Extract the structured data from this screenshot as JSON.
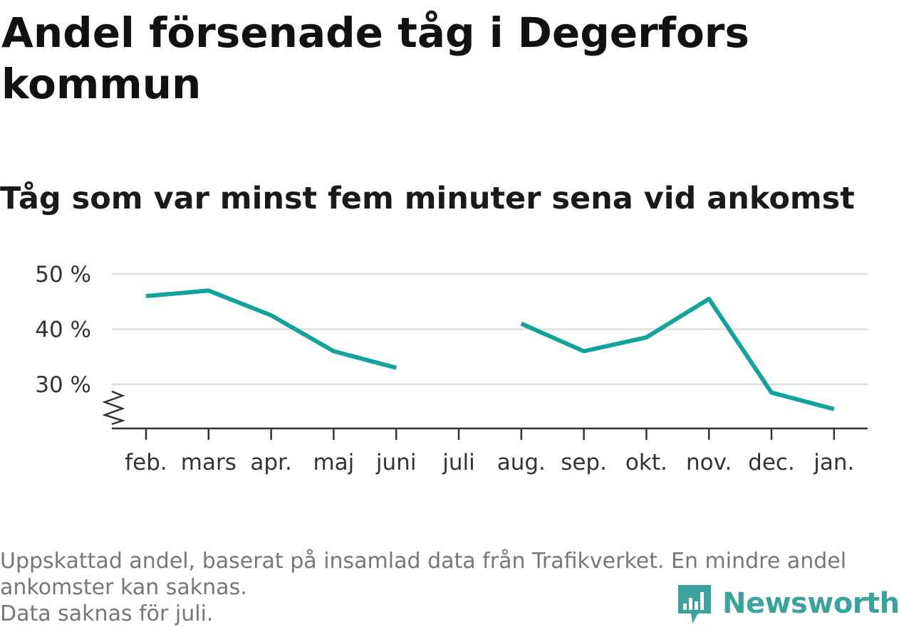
{
  "title": "Andel försenade tåg i Degerfors kommun",
  "subtitle": "Tåg som var minst fem minuter sena vid ankomst",
  "footnote": {
    "line1": "Uppskattad andel, baserat på insamlad data från Trafikverket. En mindre andel",
    "line2": "ankomster kan saknas.",
    "line3": "Data saknas för juli."
  },
  "logo": {
    "text": "Newsworthy",
    "icon": "newsworthy-logo-icon"
  },
  "colors": {
    "line": "#12a39b",
    "grid": "#dddddd",
    "axis": "#333333",
    "footnote": "#777777",
    "brand": "#3aa39d"
  },
  "chart_data": {
    "type": "line",
    "categories": [
      "feb.",
      "mars",
      "apr.",
      "maj",
      "juni",
      "juli",
      "aug.",
      "sep.",
      "okt.",
      "nov.",
      "dec.",
      "jan."
    ],
    "series": [
      {
        "values": [
          46,
          47,
          42.5,
          36,
          33,
          null,
          41,
          36,
          38.5,
          45.5,
          28.5,
          25.5
        ]
      }
    ],
    "yticks": [
      30,
      40,
      50
    ],
    "yticklabels": [
      "30 %",
      "40 %",
      "50 %"
    ],
    "ylim": [
      22,
      50
    ],
    "y_axis_break": true,
    "grid": true,
    "xlabel": "",
    "ylabel": ""
  }
}
